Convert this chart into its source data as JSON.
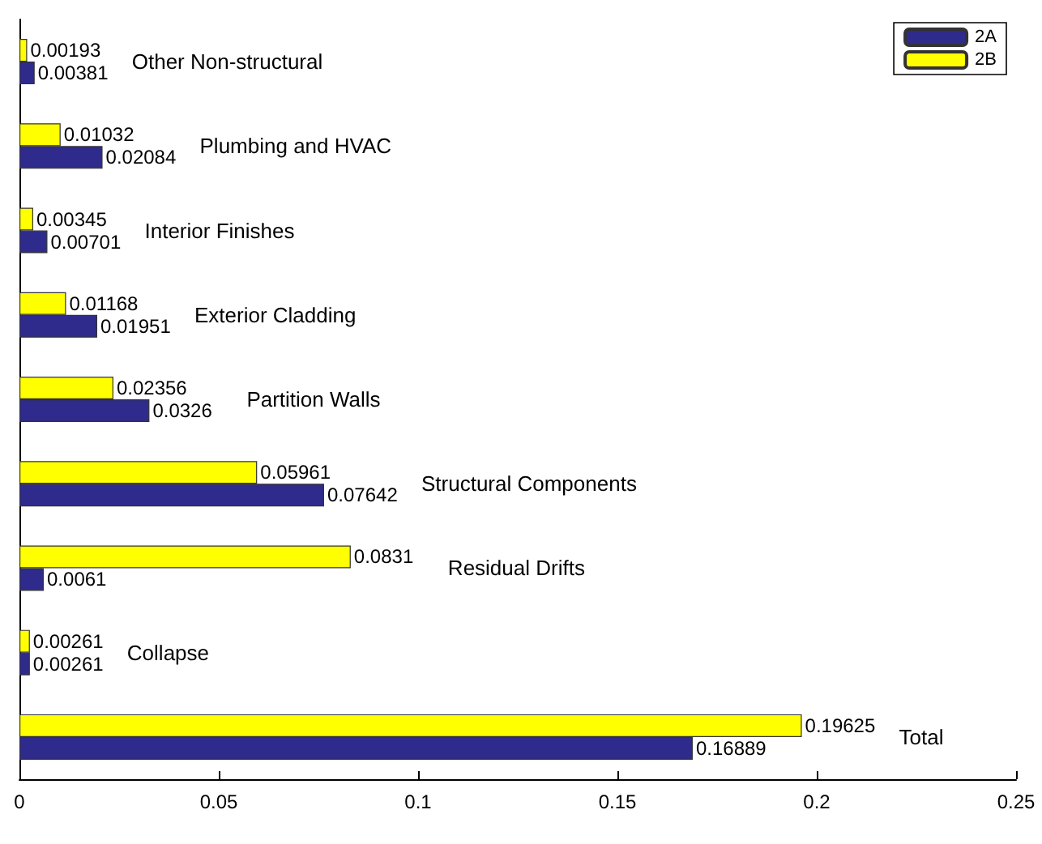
{
  "chart_data": {
    "type": "bar",
    "orientation": "horizontal",
    "categories": [
      "Other Non-structural",
      "Plumbing and HVAC",
      "Interior Finishes",
      "Exterior Cladding",
      "Partition Walls",
      "Structural Components",
      "Residual Drifts",
      "Collapse",
      "Total"
    ],
    "series": [
      {
        "name": "2A",
        "color": "#2e2b8c",
        "values": [
          0.00381,
          0.02084,
          0.00701,
          0.01951,
          0.0326,
          0.07642,
          0.0061,
          0.00261,
          0.16889
        ]
      },
      {
        "name": "2B",
        "color": "#ffff00",
        "values": [
          0.00193,
          0.01032,
          0.00345,
          0.01168,
          0.02356,
          0.05961,
          0.0831,
          0.00261,
          0.19625
        ]
      }
    ],
    "xlim": [
      0,
      0.25
    ],
    "xticks": [
      0,
      0.05,
      0.1,
      0.15,
      0.2,
      0.25
    ],
    "data_labels": true,
    "grid": false,
    "legend": "top right"
  }
}
